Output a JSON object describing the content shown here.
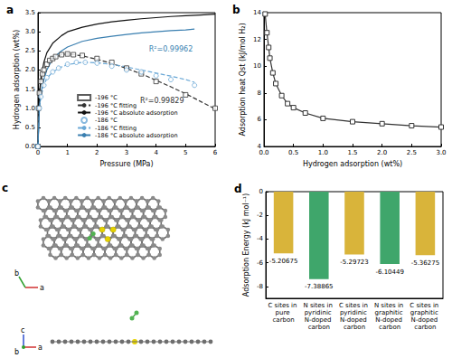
{
  "chart_data": [
    {
      "title": "a",
      "type": "line",
      "x_label": "Pressure (MPa)",
      "y_label": "Hydrogen adsorption (wt%)",
      "xlim": [
        0,
        6
      ],
      "xticks": [
        0,
        1,
        2,
        3,
        4,
        5,
        6
      ],
      "ylim": [
        0,
        3.5
      ],
      "yticks": [
        {
          "value": 0,
          "label": "0.0"
        },
        {
          "value": 0.5,
          "label": "0.5"
        },
        {
          "value": 1,
          "label": "1.0"
        },
        {
          "value": 1.5,
          "label": "1.5"
        },
        {
          "value": 2,
          "label": "2.0"
        },
        {
          "value": 2.5,
          "label": "2.5"
        },
        {
          "value": 3,
          "label": "3.0"
        },
        {
          "value": 3.5,
          "label": "3.5"
        }
      ],
      "grid": false,
      "legend": "lower center",
      "series": [
        {
          "name": "-196 °C",
          "type": "scatter",
          "marker": "square",
          "color": "#333333",
          "x": [
            0,
            0.02,
            0.05,
            0.1,
            0.15,
            0.2,
            0.3,
            0.4,
            0.5,
            0.6,
            0.8,
            1.0,
            1.2,
            1.5,
            2.0,
            2.5,
            3.0,
            3.5,
            4.0,
            5.0,
            6.0
          ],
          "values": [
            0,
            1.0,
            1.4,
            1.7,
            1.9,
            2.0,
            2.15,
            2.25,
            2.3,
            2.35,
            2.4,
            2.42,
            2.4,
            2.38,
            2.3,
            2.2,
            2.05,
            1.9,
            1.7,
            1.35,
            1.0
          ]
        },
        {
          "name": "-196 °C fitting",
          "type": "line",
          "line_style": "dashed",
          "color": "#333333",
          "x": [
            0,
            0.05,
            0.1,
            0.2,
            0.3,
            0.5,
            0.8,
            1.0,
            1.5,
            2,
            2.5,
            3,
            3.5,
            4,
            4.5,
            5,
            5.5,
            6
          ],
          "values": [
            0,
            1.35,
            1.7,
            2.0,
            2.15,
            2.3,
            2.4,
            2.42,
            2.37,
            2.28,
            2.17,
            2.04,
            1.9,
            1.73,
            1.56,
            1.38,
            1.18,
            0.98
          ]
        },
        {
          "name": "-196 °C absolute adsorption",
          "type": "line",
          "line_style": "solid",
          "color": "#111111",
          "x": [
            0,
            0.05,
            0.1,
            0.2,
            0.3,
            0.5,
            0.8,
            1.0,
            1.5,
            2,
            2.5,
            3,
            3.5,
            4,
            4.5,
            5,
            5.5,
            6
          ],
          "values": [
            0,
            1.4,
            1.8,
            2.2,
            2.45,
            2.7,
            2.9,
            3.0,
            3.12,
            3.2,
            3.26,
            3.3,
            3.34,
            3.37,
            3.4,
            3.42,
            3.44,
            3.46
          ]
        },
        {
          "name": "-186 °C",
          "type": "scatter",
          "marker": "circle",
          "color": "#6aa8d6",
          "x": [
            0,
            0.05,
            0.1,
            0.2,
            0.3,
            0.5,
            0.7,
            1.0,
            1.3,
            1.6,
            2.0,
            2.5,
            3.0,
            3.5,
            4.0,
            4.5,
            5.3
          ],
          "values": [
            0,
            1.0,
            1.3,
            1.6,
            1.8,
            1.95,
            2.05,
            2.15,
            2.2,
            2.2,
            2.18,
            2.1,
            2.0,
            1.95,
            1.85,
            1.75,
            1.6
          ]
        },
        {
          "name": "-186 °C fitting",
          "type": "line",
          "line_style": "dashed",
          "color": "#6aa8d6",
          "x": [
            0,
            0.05,
            0.1,
            0.2,
            0.3,
            0.5,
            0.8,
            1.0,
            1.5,
            2,
            2.5,
            3,
            3.5,
            4,
            4.5,
            5,
            5.3
          ],
          "values": [
            0,
            1.0,
            1.3,
            1.6,
            1.78,
            1.95,
            2.08,
            2.14,
            2.2,
            2.19,
            2.15,
            2.08,
            2.0,
            1.92,
            1.84,
            1.75,
            1.68
          ]
        },
        {
          "name": "-186 °C absolute adsorption",
          "type": "line",
          "line_style": "solid",
          "color": "#3a7fb0",
          "x": [
            0,
            0.05,
            0.1,
            0.2,
            0.3,
            0.5,
            0.8,
            1.0,
            1.5,
            2,
            2.5,
            3,
            3.5,
            4,
            4.5,
            5,
            5.3
          ],
          "values": [
            0,
            1.05,
            1.4,
            1.75,
            2.0,
            2.3,
            2.5,
            2.6,
            2.75,
            2.83,
            2.88,
            2.93,
            2.97,
            3.0,
            3.03,
            3.05,
            3.07
          ]
        }
      ],
      "annotations": [
        {
          "text": "R²=0.99962",
          "x": 4.5,
          "y": 2.55,
          "color": "#3a7fb0"
        },
        {
          "text": "R²=0.99829",
          "x": 4.2,
          "y": 1.2,
          "color": "#333333"
        }
      ]
    },
    {
      "title": "b",
      "type": "line",
      "marker": "square",
      "color": "#333333",
      "x_label": "Hydrogen adsorption (wt%)",
      "y_label": "Adsorption heat Qst (kJ/mol H₂)",
      "xlim": [
        0,
        3
      ],
      "xticks": [
        {
          "value": 0,
          "label": "0.0"
        },
        {
          "value": 0.5,
          "label": "0.5"
        },
        {
          "value": 1,
          "label": "1.0"
        },
        {
          "value": 1.5,
          "label": "1.5"
        },
        {
          "value": 2,
          "label": "2.0"
        },
        {
          "value": 2.5,
          "label": "2.5"
        },
        {
          "value": 3,
          "label": "3.0"
        }
      ],
      "ylim": [
        4,
        14
      ],
      "yticks": [
        4,
        6,
        8,
        10,
        12,
        14
      ],
      "grid": false,
      "x": [
        0.02,
        0.05,
        0.08,
        0.1,
        0.15,
        0.2,
        0.3,
        0.4,
        0.5,
        0.7,
        1.0,
        1.5,
        2.0,
        2.5,
        3.0
      ],
      "values": [
        13.9,
        12.5,
        11.4,
        10.6,
        9.5,
        8.7,
        7.8,
        7.2,
        6.9,
        6.5,
        6.1,
        5.85,
        5.7,
        5.55,
        5.45
      ]
    },
    {
      "title": "d",
      "type": "bar",
      "y_label": "Adsorption Energy (kJ mol⁻¹)",
      "categories": [
        "C sites in pure carbon",
        "N sites in pyridinic N-doped carbon",
        "C sites in pyridinic N-doped carbon",
        "N sites in graphitic N-doped carbon",
        "C sites in graphitic N-doped carbon"
      ],
      "values": [
        -5.20675,
        -7.38865,
        -5.29723,
        -6.10449,
        -5.36275
      ],
      "colors": [
        "#d9b43a",
        "#3fa66b",
        "#d9b43a",
        "#3fa66b",
        "#d9b43a"
      ],
      "ylim": [
        -9,
        0
      ],
      "yticks": [
        -8,
        -6,
        -4,
        -2,
        0
      ],
      "grid": false,
      "data_labels": true
    }
  ],
  "diagram": {
    "label": "c",
    "top_view_axes": [
      "a",
      "b"
    ],
    "side_view_axes": [
      "a",
      "b",
      "c"
    ]
  }
}
